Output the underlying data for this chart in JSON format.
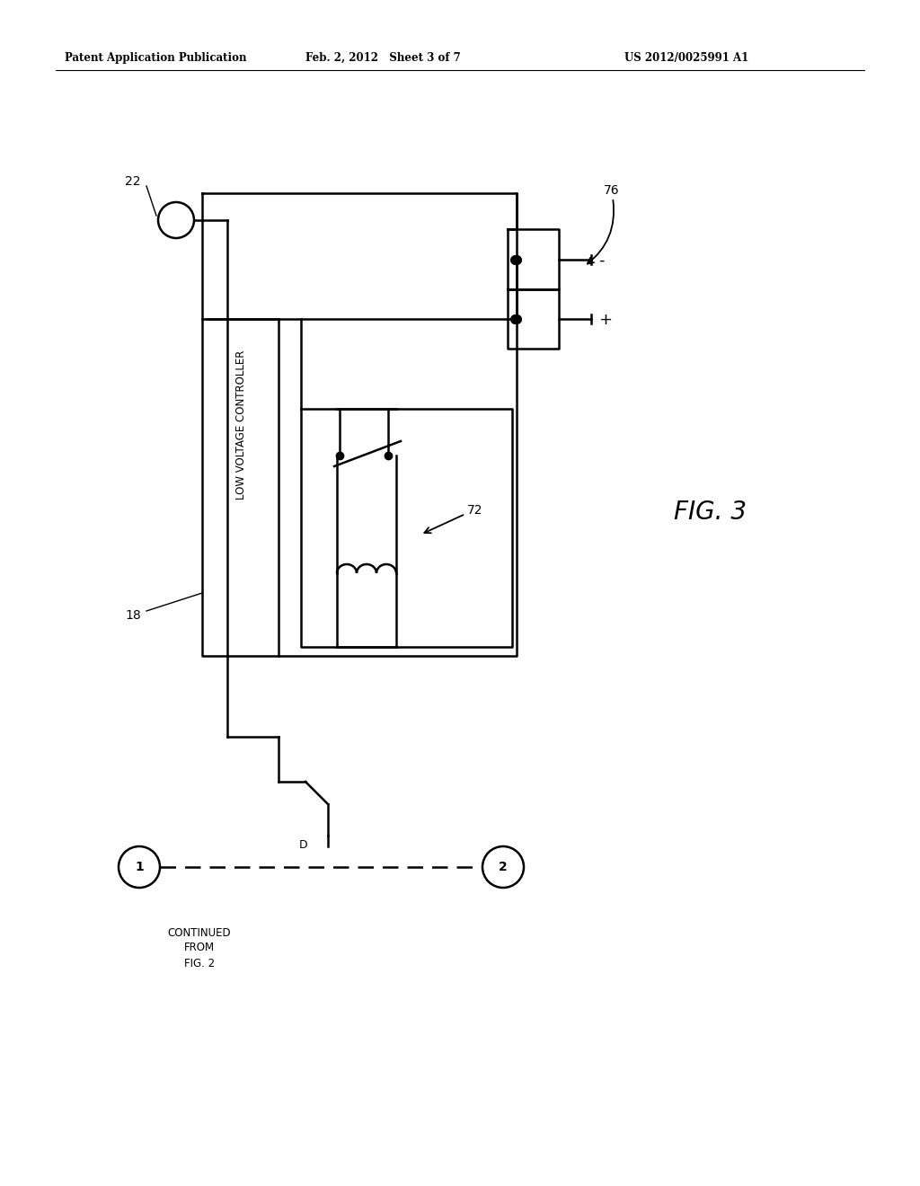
{
  "header_left": "Patent Application Publication",
  "header_mid": "Feb. 2, 2012   Sheet 3 of 7",
  "header_right": "US 2012/0025991 A1",
  "fig_label": "FIG. 3",
  "label_22": "22",
  "label_18": "18",
  "label_72": "72",
  "label_76": "76",
  "label_D": "D",
  "box_text": "LOW VOLTAGE CONTROLLER",
  "continued_text": "CONTINUED\nFROM\nFIG. 2",
  "bg_color": "#ffffff",
  "line_color": "#000000"
}
